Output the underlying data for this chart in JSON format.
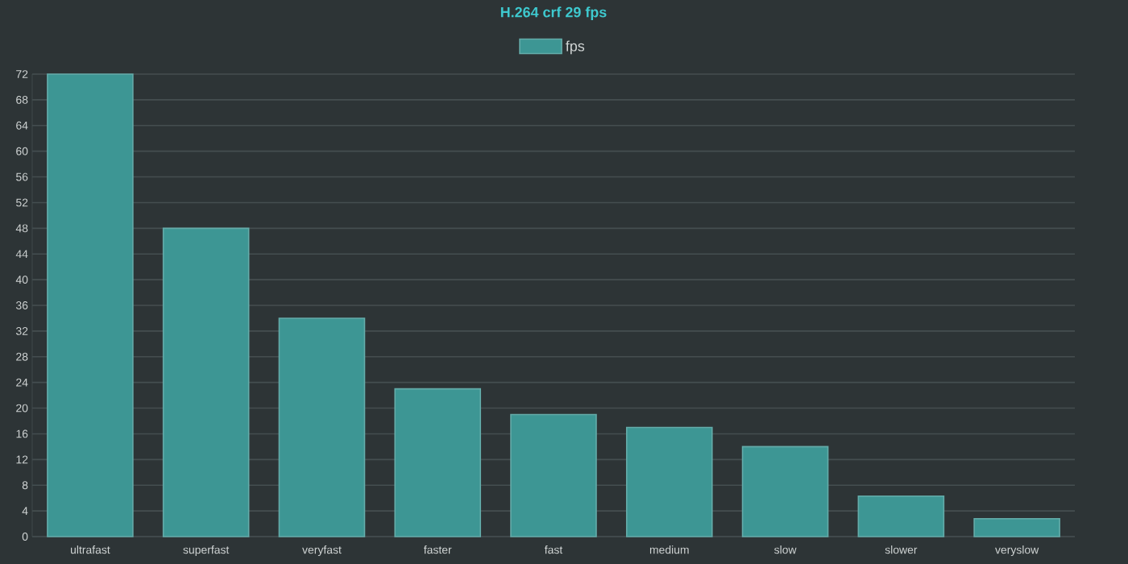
{
  "chart_data": {
    "type": "bar",
    "title": "H.264 crf 29 fps",
    "categories": [
      "ultrafast",
      "superfast",
      "veryfast",
      "faster",
      "fast",
      "medium",
      "slow",
      "slower",
      "veryslow"
    ],
    "series": [
      {
        "name": "fps",
        "color": "#3d9694",
        "values": [
          72,
          48,
          34,
          23,
          19,
          17,
          14,
          6.3,
          2.8
        ]
      }
    ],
    "ylim": [
      0,
      72
    ],
    "yticks": [
      0,
      4,
      8,
      12,
      16,
      20,
      24,
      28,
      32,
      36,
      40,
      44,
      48,
      52,
      56,
      60,
      64,
      68,
      72
    ],
    "grid": "y",
    "legend": "top"
  }
}
